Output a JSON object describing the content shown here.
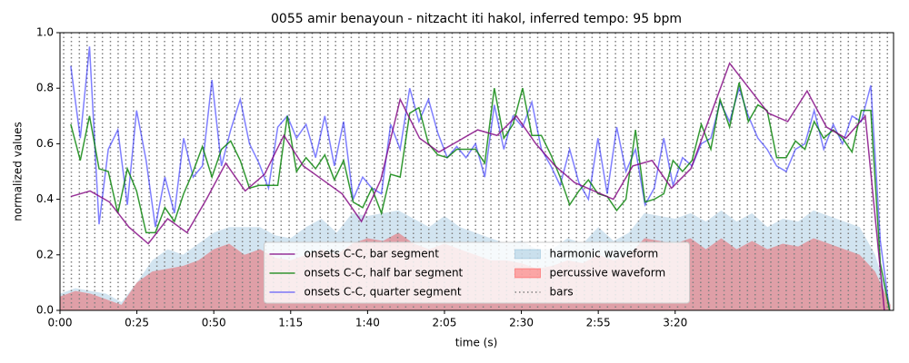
{
  "chart_data": {
    "type": "line",
    "title": "0055 amir benayoun - nitzacht iti hakol, inferred tempo: 95 bpm",
    "xlabel": "time (s)",
    "ylabel": "normalized values",
    "xlim": [
      0,
      271
    ],
    "ylim": [
      0,
      1
    ],
    "xticks": [
      {
        "value": 0,
        "label": "0:00"
      },
      {
        "value": 25,
        "label": "0:25"
      },
      {
        "value": 50,
        "label": "0:50"
      },
      {
        "value": 75,
        "label": "1:15"
      },
      {
        "value": 100,
        "label": "1:40"
      },
      {
        "value": 125,
        "label": "2:05"
      },
      {
        "value": 150,
        "label": "2:30"
      },
      {
        "value": 175,
        "label": "2:55"
      },
      {
        "value": 200,
        "label": "3:20"
      }
    ],
    "yticks": [
      {
        "value": 0,
        "label": "0.0"
      },
      {
        "value": 0.2,
        "label": "0.2"
      },
      {
        "value": 0.4,
        "label": "0.4"
      },
      {
        "value": 0.6,
        "label": "0.6"
      },
      {
        "value": 0.8,
        "label": "0.8"
      },
      {
        "value": 1,
        "label": "1.0"
      }
    ],
    "legend": "lower center",
    "series": [
      {
        "name": "onsets C-C, bar segment",
        "kind": "line",
        "color": "#800080",
        "opacity": 0.8,
        "x": [
          3.5,
          9.8,
          16.1,
          22.4,
          28.7,
          35.0,
          41.3,
          47.6,
          53.9,
          60.2,
          66.5,
          72.8,
          79.1,
          85.4,
          91.7,
          98.0,
          104.3,
          110.6,
          116.9,
          123.2,
          129.5,
          135.8,
          142.1,
          148.4,
          154.7,
          161.0,
          167.3,
          173.6,
          179.9,
          186.2,
          192.5,
          198.8,
          205.1,
          211.4,
          217.7,
          224.0,
          230.3,
          236.6,
          242.9,
          249.2,
          255.5,
          261.8,
          268.0
        ],
        "values": [
          0.41,
          0.43,
          0.39,
          0.3,
          0.24,
          0.33,
          0.28,
          0.4,
          0.53,
          0.43,
          0.49,
          0.63,
          0.52,
          0.47,
          0.42,
          0.32,
          0.47,
          0.76,
          0.62,
          0.57,
          0.61,
          0.65,
          0.63,
          0.7,
          0.6,
          0.52,
          0.46,
          0.43,
          0.4,
          0.52,
          0.54,
          0.44,
          0.51,
          0.7,
          0.89,
          0.8,
          0.71,
          0.68,
          0.79,
          0.66,
          0.62,
          0.7,
          0.0
        ]
      },
      {
        "name": "onsets C-C, half bar segment",
        "kind": "line",
        "color": "#008000",
        "opacity": 0.8,
        "x": [
          3.5,
          6.6,
          9.6,
          12.7,
          15.7,
          18.8,
          21.9,
          24.9,
          28.0,
          31.0,
          34.1,
          37.2,
          40.2,
          43.3,
          46.3,
          49.4,
          52.5,
          55.5,
          58.6,
          61.6,
          64.7,
          67.8,
          70.8,
          73.9,
          76.9,
          80.0,
          83.1,
          86.1,
          89.2,
          92.2,
          95.3,
          98.4,
          101.4,
          104.5,
          107.5,
          110.6,
          113.7,
          116.7,
          119.8,
          122.8,
          125.9,
          129.0,
          132.0,
          135.1,
          138.1,
          141.2,
          144.3,
          147.3,
          150.4,
          153.4,
          156.5,
          159.6,
          162.6,
          165.7,
          168.7,
          171.8,
          174.9,
          177.9,
          181.0,
          184.0,
          187.1,
          190.2,
          193.2,
          196.3,
          199.3,
          202.4,
          205.5,
          208.5,
          211.6,
          214.6,
          217.7,
          220.8,
          223.8,
          226.9,
          229.9,
          233.0,
          236.1,
          239.1,
          242.2,
          245.2,
          248.3,
          251.4,
          254.4,
          257.5,
          260.5,
          263.6,
          266.7,
          269.7
        ],
        "values": [
          0.67,
          0.54,
          0.7,
          0.51,
          0.5,
          0.35,
          0.51,
          0.43,
          0.28,
          0.28,
          0.37,
          0.32,
          0.42,
          0.5,
          0.59,
          0.48,
          0.58,
          0.61,
          0.54,
          0.44,
          0.45,
          0.45,
          0.45,
          0.7,
          0.5,
          0.55,
          0.51,
          0.56,
          0.47,
          0.54,
          0.39,
          0.37,
          0.44,
          0.35,
          0.49,
          0.48,
          0.71,
          0.73,
          0.6,
          0.56,
          0.55,
          0.58,
          0.58,
          0.58,
          0.53,
          0.8,
          0.62,
          0.67,
          0.8,
          0.63,
          0.63,
          0.56,
          0.48,
          0.38,
          0.43,
          0.47,
          0.42,
          0.41,
          0.36,
          0.4,
          0.65,
          0.39,
          0.4,
          0.42,
          0.54,
          0.5,
          0.54,
          0.67,
          0.58,
          0.76,
          0.66,
          0.82,
          0.68,
          0.74,
          0.72,
          0.55,
          0.55,
          0.61,
          0.58,
          0.68,
          0.62,
          0.65,
          0.62,
          0.57,
          0.72,
          0.72,
          0.17,
          0.0
        ]
      },
      {
        "name": "onsets C-C, quarter segment",
        "kind": "line",
        "color": "#0000ff",
        "opacity": 0.5,
        "x": [
          3.5,
          6.6,
          9.6,
          12.7,
          15.7,
          18.8,
          21.9,
          24.9,
          28.0,
          31.0,
          34.1,
          37.2,
          40.2,
          43.3,
          46.3,
          49.4,
          52.5,
          55.5,
          58.6,
          61.6,
          64.7,
          67.8,
          70.8,
          73.9,
          76.9,
          80.0,
          83.1,
          86.1,
          89.2,
          92.2,
          95.3,
          98.4,
          101.4,
          104.5,
          107.5,
          110.6,
          113.7,
          116.7,
          119.8,
          122.8,
          125.9,
          129.0,
          132.0,
          135.1,
          138.1,
          141.2,
          144.3,
          147.3,
          150.4,
          153.4,
          156.5,
          159.6,
          162.6,
          165.7,
          168.7,
          171.8,
          174.9,
          177.9,
          181.0,
          184.0,
          187.1,
          190.2,
          193.2,
          196.3,
          199.3,
          202.4,
          205.5,
          208.5,
          211.6,
          214.6,
          217.7,
          220.8,
          223.8,
          226.9,
          229.9,
          233.0,
          236.1,
          239.1,
          242.2,
          245.2,
          248.3,
          251.4,
          254.4,
          257.5,
          260.5,
          263.6,
          266.7,
          269.7
        ],
        "values": [
          0.88,
          0.62,
          0.95,
          0.31,
          0.58,
          0.65,
          0.38,
          0.72,
          0.54,
          0.3,
          0.48,
          0.35,
          0.62,
          0.48,
          0.52,
          0.83,
          0.52,
          0.65,
          0.76,
          0.6,
          0.53,
          0.44,
          0.66,
          0.7,
          0.62,
          0.67,
          0.55,
          0.7,
          0.52,
          0.68,
          0.4,
          0.48,
          0.44,
          0.42,
          0.67,
          0.58,
          0.8,
          0.68,
          0.76,
          0.64,
          0.55,
          0.59,
          0.55,
          0.6,
          0.48,
          0.74,
          0.58,
          0.7,
          0.66,
          0.75,
          0.58,
          0.52,
          0.45,
          0.58,
          0.46,
          0.4,
          0.62,
          0.42,
          0.66,
          0.5,
          0.58,
          0.38,
          0.44,
          0.62,
          0.45,
          0.55,
          0.52,
          0.6,
          0.62,
          0.75,
          0.68,
          0.8,
          0.7,
          0.62,
          0.58,
          0.52,
          0.5,
          0.58,
          0.6,
          0.72,
          0.58,
          0.67,
          0.6,
          0.7,
          0.68,
          0.81,
          0.25,
          0.0
        ]
      },
      {
        "name": "harmonic waveform",
        "kind": "area",
        "color": "#1f77b4",
        "opacity": 0.2,
        "x": [
          0,
          5,
          10,
          15,
          20,
          25,
          30,
          35,
          40,
          45,
          50,
          55,
          60,
          65,
          70,
          75,
          80,
          85,
          90,
          95,
          100,
          105,
          110,
          115,
          120,
          125,
          130,
          135,
          140,
          145,
          150,
          155,
          160,
          165,
          170,
          175,
          180,
          185,
          190,
          195,
          200,
          205,
          210,
          215,
          220,
          225,
          230,
          235,
          240,
          245,
          250,
          255,
          260,
          265,
          270
        ],
        "values": [
          0.06,
          0.08,
          0.07,
          0.06,
          0.03,
          0.1,
          0.18,
          0.22,
          0.2,
          0.24,
          0.28,
          0.3,
          0.3,
          0.3,
          0.27,
          0.26,
          0.3,
          0.33,
          0.28,
          0.35,
          0.34,
          0.35,
          0.36,
          0.33,
          0.3,
          0.34,
          0.3,
          0.28,
          0.26,
          0.24,
          0.25,
          0.22,
          0.22,
          0.26,
          0.24,
          0.3,
          0.25,
          0.28,
          0.35,
          0.34,
          0.33,
          0.35,
          0.32,
          0.36,
          0.32,
          0.35,
          0.3,
          0.33,
          0.32,
          0.36,
          0.34,
          0.32,
          0.3,
          0.2,
          0.02
        ]
      },
      {
        "name": "percussive waveform",
        "kind": "area",
        "color": "#ff0000",
        "opacity": 0.3,
        "x": [
          0,
          5,
          10,
          15,
          20,
          25,
          30,
          35,
          40,
          45,
          50,
          55,
          60,
          65,
          70,
          75,
          80,
          85,
          90,
          95,
          100,
          105,
          110,
          115,
          120,
          125,
          130,
          135,
          140,
          145,
          150,
          155,
          160,
          165,
          170,
          175,
          180,
          185,
          190,
          195,
          200,
          205,
          210,
          215,
          220,
          225,
          230,
          235,
          240,
          245,
          250,
          255,
          260,
          265,
          270
        ],
        "values": [
          0.05,
          0.07,
          0.06,
          0.04,
          0.02,
          0.1,
          0.14,
          0.15,
          0.16,
          0.18,
          0.22,
          0.24,
          0.2,
          0.22,
          0.19,
          0.18,
          0.2,
          0.22,
          0.2,
          0.24,
          0.26,
          0.25,
          0.28,
          0.24,
          0.22,
          0.24,
          0.22,
          0.2,
          0.18,
          0.18,
          0.17,
          0.15,
          0.16,
          0.18,
          0.17,
          0.2,
          0.18,
          0.2,
          0.26,
          0.25,
          0.24,
          0.26,
          0.22,
          0.26,
          0.22,
          0.25,
          0.22,
          0.24,
          0.23,
          0.26,
          0.24,
          0.22,
          0.2,
          0.14,
          0.02
        ]
      },
      {
        "name": "bars",
        "kind": "vlines",
        "color": "#808080",
        "opacity": 1,
        "x": [
          1.2,
          3.7,
          6.3,
          8.8,
          11.3,
          13.8,
          16.4,
          18.9,
          21.4,
          23.9,
          26.5,
          29.0,
          31.5,
          34.0,
          36.6,
          39.1,
          41.6,
          44.1,
          46.7,
          49.2,
          51.7,
          54.3,
          56.8,
          59.3,
          61.8,
          64.4,
          66.9,
          69.4,
          71.9,
          74.5,
          77.0,
          79.5,
          82.0,
          84.6,
          87.1,
          89.6,
          92.1,
          94.7,
          97.2,
          99.7,
          102.2,
          104.8,
          107.3,
          109.8,
          112.4,
          114.9,
          117.4,
          119.9,
          122.5,
          125.0,
          127.5,
          130.0,
          132.6,
          135.1,
          137.6,
          140.1,
          142.7,
          145.2,
          147.7,
          150.2,
          152.8,
          155.3,
          157.8,
          160.3,
          162.9,
          165.4,
          167.9,
          170.5,
          173.0,
          175.5,
          178.0,
          180.6,
          183.1,
          185.6,
          188.1,
          190.7,
          193.2,
          195.7,
          198.2,
          200.8,
          203.3,
          205.8,
          208.3,
          210.9,
          213.4,
          215.9,
          218.4,
          221.0,
          223.5,
          226.0,
          228.6,
          231.1,
          233.6,
          236.1,
          238.7,
          241.2,
          243.7,
          246.2,
          248.8,
          251.3,
          253.8,
          256.3,
          258.9,
          261.4,
          263.9,
          266.5,
          269.0
        ]
      }
    ]
  }
}
